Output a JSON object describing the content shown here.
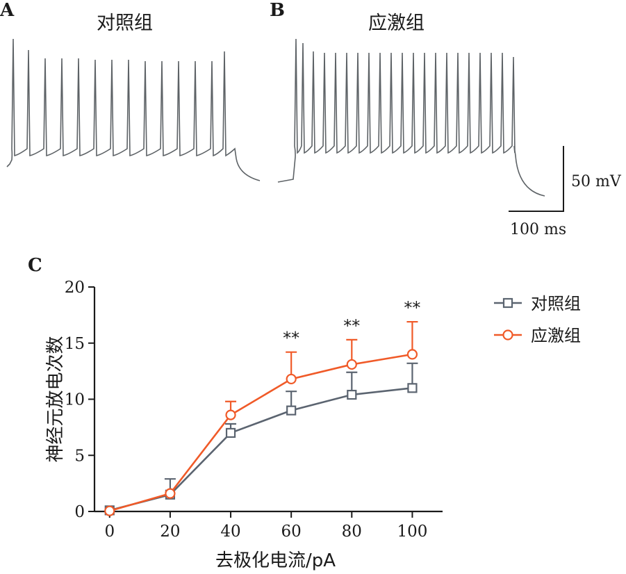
{
  "panel_a": {
    "letter": "A",
    "title": "对照组",
    "color": "#5d6266"
  },
  "panel_b": {
    "letter": "B",
    "title": "应激组",
    "color": "#5d6266"
  },
  "scale_bar": {
    "voltage_label": "50 mV",
    "time_label": "100 ms"
  },
  "panel_c": {
    "letter": "C"
  },
  "chart_data": {
    "type": "line",
    "x": [
      0,
      20,
      40,
      60,
      80,
      100
    ],
    "xlabel": "去极化电流/pA",
    "ylabel": "神经元放电次数",
    "xticks": [
      "0",
      "20",
      "40",
      "60",
      "80",
      "100"
    ],
    "yticks": [
      "0",
      "5",
      "10",
      "15",
      "20"
    ],
    "xlim": [
      -5,
      110
    ],
    "ylim": [
      0,
      20
    ],
    "grid": false,
    "legend_position": "top-right",
    "series": [
      {
        "name": "对照组",
        "color": "#5b6470",
        "marker": "square",
        "values": [
          0.1,
          1.5,
          7.0,
          9.0,
          10.4,
          11.0
        ],
        "error": [
          0,
          1.4,
          0.8,
          1.7,
          2.0,
          2.2
        ]
      },
      {
        "name": "应激组",
        "color": "#f05a28",
        "marker": "circle",
        "values": [
          0.05,
          1.6,
          8.6,
          11.8,
          13.1,
          14.0
        ],
        "error": [
          0,
          0,
          1.2,
          2.4,
          2.2,
          2.9
        ]
      }
    ],
    "annotations": [
      {
        "x": 60,
        "text": "**"
      },
      {
        "x": 80,
        "text": "**"
      },
      {
        "x": 100,
        "text": "**"
      }
    ]
  }
}
